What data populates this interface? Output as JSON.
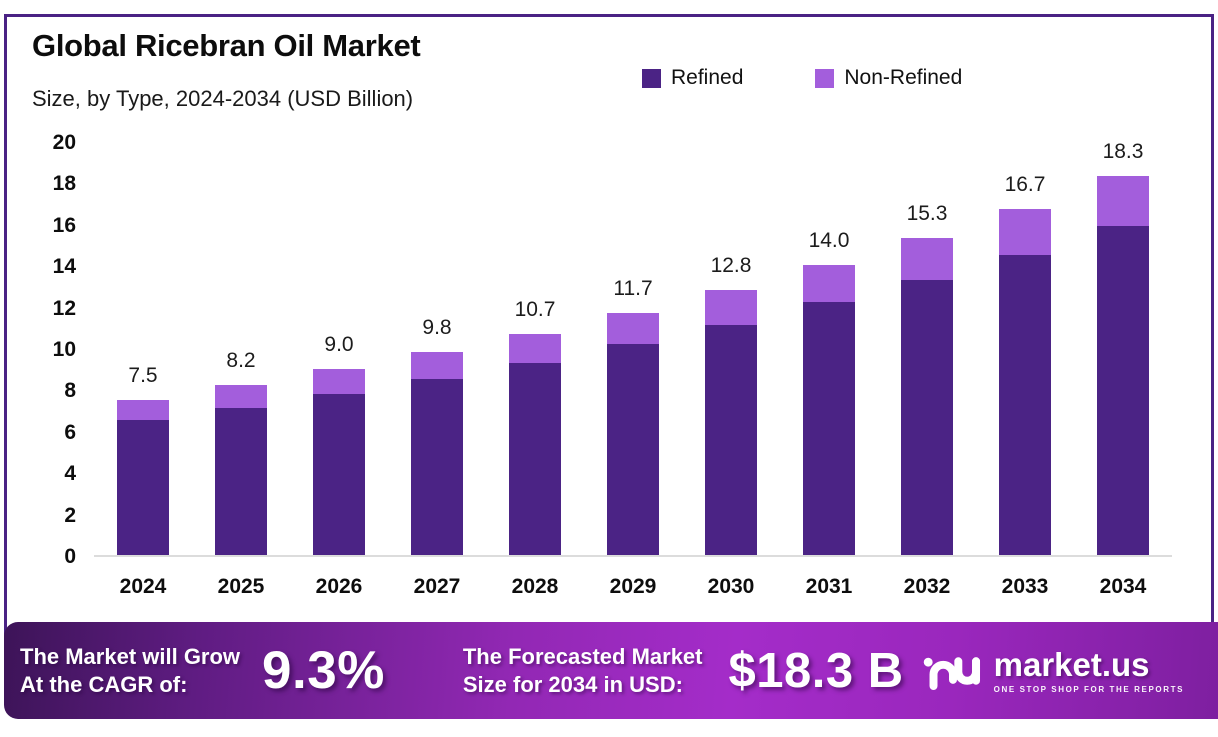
{
  "header": {
    "title": "Global Ricebran Oil Market",
    "subtitle": "Size, by Type, 2024-2034 (USD Billion)"
  },
  "legend": {
    "items": [
      {
        "label": "Refined",
        "color": "#4b2385"
      },
      {
        "label": "Non-Refined",
        "color": "#a35edc"
      }
    ]
  },
  "chart_data": {
    "type": "bar",
    "stacked": true,
    "title": "Global Ricebran Oil Market",
    "subtitle": "Size, by Type, 2024-2034 (USD Billion)",
    "unit": "USD Billion",
    "categories": [
      "2024",
      "2025",
      "2026",
      "2027",
      "2028",
      "2029",
      "2030",
      "2031",
      "2032",
      "2033",
      "2034"
    ],
    "series": [
      {
        "name": "Refined",
        "color": "#4b2385",
        "values": [
          6.5,
          7.1,
          7.8,
          8.5,
          9.3,
          10.2,
          11.1,
          12.2,
          13.3,
          14.5,
          15.9
        ]
      },
      {
        "name": "Non-Refined",
        "color": "#a35edc",
        "values": [
          1.0,
          1.1,
          1.2,
          1.3,
          1.4,
          1.5,
          1.7,
          1.8,
          2.0,
          2.2,
          2.4
        ]
      }
    ],
    "totals": [
      7.5,
      8.2,
      9.0,
      9.8,
      10.7,
      11.7,
      12.8,
      14.0,
      15.3,
      16.7,
      18.3
    ],
    "total_labels": [
      "7.5",
      "8.2",
      "9.0",
      "9.8",
      "10.7",
      "11.7",
      "12.8",
      "14.0",
      "15.3",
      "16.7",
      "18.3"
    ],
    "ylim": [
      0,
      20
    ],
    "yticks": [
      0,
      2,
      4,
      6,
      8,
      10,
      12,
      14,
      16,
      18,
      20
    ],
    "xlabel": "",
    "ylabel": "",
    "grid": false,
    "legend_position": "top-right"
  },
  "footer": {
    "grow_line1": "The Market will Grow",
    "grow_line2": "At the CAGR of:",
    "cagr": "9.3%",
    "forecast_line1": "The Forecasted Market",
    "forecast_line2": "Size for 2034 in USD:",
    "forecast_value": "$18.3 B",
    "logo_text": "market.us",
    "logo_tagline": "ONE STOP SHOP FOR THE REPORTS"
  },
  "colors": {
    "frame": "#4a2284",
    "refined": "#4b2385",
    "non_refined": "#a35edc",
    "baseline": "#dcdcdc",
    "banner_left": "#3d1458",
    "banner_center": "#a42cc9",
    "banner_right": "#7e1fa0"
  }
}
